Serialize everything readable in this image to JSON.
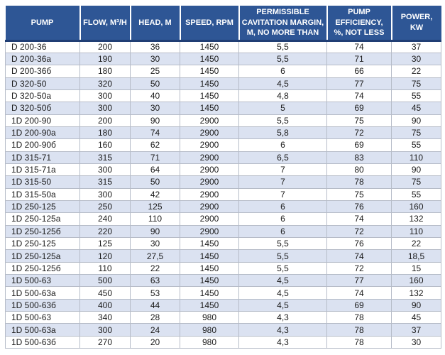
{
  "colors": {
    "header_bg": "#2e5695",
    "header_border": "#203e74",
    "header_text": "#ffffff",
    "row_alt": "#dbe2f1",
    "row_bg": "#ffffff",
    "grid": "#b6bcc8",
    "text": "#1b1b1b"
  },
  "table": {
    "columns": [
      "PUMP",
      "FLOW, M³/H",
      "HEAD, M",
      "SPEED, RPM",
      "PERMISSIBLE CAVITATION MARGIN, M, NO MORE THAN",
      "PUMP EFFICIENCY, %, NOT LESS",
      "POWER, KW"
    ],
    "rows": [
      [
        "D 200-36",
        "200",
        "36",
        "1450",
        "5,5",
        "74",
        "37"
      ],
      [
        "D 200-36a",
        "190",
        "30",
        "1450",
        "5,5",
        "71",
        "30"
      ],
      [
        "D 200-36б",
        "180",
        "25",
        "1450",
        "6",
        "66",
        "22"
      ],
      [
        "D 320-50",
        "320",
        "50",
        "1450",
        "4,5",
        "77",
        "75"
      ],
      [
        "D 320-50a",
        "300",
        "40",
        "1450",
        "4,8",
        "74",
        "55"
      ],
      [
        "D 320-50б",
        "300",
        "30",
        "1450",
        "5",
        "69",
        "45"
      ],
      [
        "1D 200-90",
        "200",
        "90",
        "2900",
        "5,5",
        "75",
        "90"
      ],
      [
        "1D 200-90a",
        "180",
        "74",
        "2900",
        "5,8",
        "72",
        "75"
      ],
      [
        "1D 200-90б",
        "160",
        "62",
        "2900",
        "6",
        "69",
        "55"
      ],
      [
        "1D 315-71",
        "315",
        "71",
        "2900",
        "6,5",
        "83",
        "110"
      ],
      [
        "1D 315-71a",
        "300",
        "64",
        "2900",
        "7",
        "80",
        "90"
      ],
      [
        "1D 315-50",
        "315",
        "50",
        "2900",
        "7",
        "78",
        "75"
      ],
      [
        "1D 315-50a",
        "300",
        "42",
        "2900",
        "7",
        "75",
        "55"
      ],
      [
        "1D 250-125",
        "250",
        "125",
        "2900",
        "6",
        "76",
        "160"
      ],
      [
        "1D 250-125a",
        "240",
        "110",
        "2900",
        "6",
        "74",
        "132"
      ],
      [
        "1D 250-125б",
        "220",
        "90",
        "2900",
        "6",
        "72",
        "110"
      ],
      [
        "1D 250-125",
        "125",
        "30",
        "1450",
        "5,5",
        "76",
        "22"
      ],
      [
        "1D 250-125a",
        "120",
        "27,5",
        "1450",
        "5,5",
        "74",
        "18,5"
      ],
      [
        "1D 250-125б",
        "110",
        "22",
        "1450",
        "5,5",
        "72",
        "15"
      ],
      [
        "1D 500-63",
        "500",
        "63",
        "1450",
        "4,5",
        "77",
        "160"
      ],
      [
        "1D 500-63a",
        "450",
        "53",
        "1450",
        "4,5",
        "74",
        "132"
      ],
      [
        "1D 500-63б",
        "400",
        "44",
        "1450",
        "4,5",
        "69",
        "90"
      ],
      [
        "1D 500-63",
        "340",
        "28",
        "980",
        "4,3",
        "78",
        "45"
      ],
      [
        "1D 500-63a",
        "300",
        "24",
        "980",
        "4,3",
        "78",
        "37"
      ],
      [
        "1D 500-63б",
        "270",
        "20",
        "980",
        "4,3",
        "78",
        "30"
      ]
    ]
  }
}
